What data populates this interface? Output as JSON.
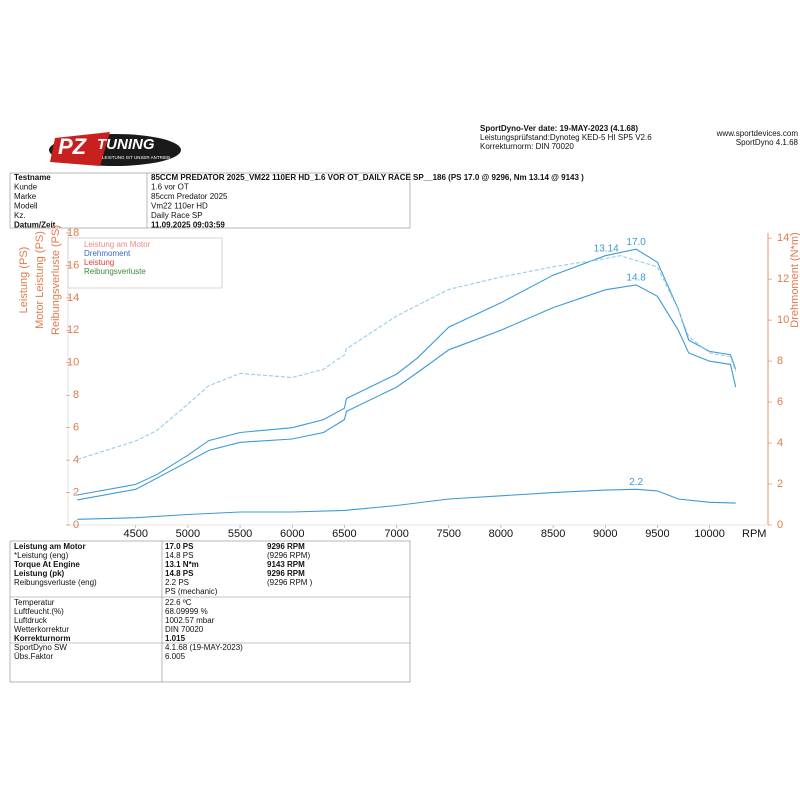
{
  "header": {
    "logo": {
      "brand": "PZ",
      "name": "TUNING",
      "tagline": "LEISTUNG IST UNSER ANTRIEB"
    },
    "version": "SportDyno-Ver date: 19-MAY-2023 (4.1.68)",
    "dyno": "Leistungsprüfstand:Dynoteg KED-5 HI SP5 V2.6",
    "norm": "Korrekturnorm: DIN 70020",
    "website": "www.sportdevices.com",
    "software": "SportDyno 4.1.68"
  },
  "info": [
    {
      "label": "Testname",
      "value": "85CCM PREDATOR 2025_VM22 110ER HD_1.6 VOR OT_DAILY RACE SP__186 (PS 17.0 @ 9296, Nm 13.14 @ 9143 )",
      "bold": true
    },
    {
      "label": "Kunde",
      "value": "1.6 vor OT",
      "bold": false
    },
    {
      "label": "Marke",
      "value": "85ccm Predator 2025",
      "bold": false
    },
    {
      "label": "Modell",
      "value": "Vm22 110er HD",
      "bold": false
    },
    {
      "label": "Kz.",
      "value": "Daily Race SP",
      "bold": false
    },
    {
      "label": "Datum/Zeit",
      "value": "11.09.2025 09:03:59",
      "bold": true
    }
  ],
  "chart_data": {
    "type": "line",
    "y_labels": [
      "Leistung (PS)",
      "Motor Leistung (PS)",
      "Reibungsverluste (PS)"
    ],
    "y2_label": "Drehmoment (N*m)",
    "x_label": "RPM",
    "xlim": [
      3870,
      10550
    ],
    "xticks": [
      4500,
      5000,
      5500,
      6000,
      6500,
      7000,
      7500,
      8000,
      8500,
      9000,
      9500,
      10000
    ],
    "ylim": [
      0,
      18
    ],
    "yticks": [
      0,
      2,
      4,
      6,
      8,
      10,
      12,
      14,
      16,
      18
    ],
    "y2lim": [
      0,
      14.25
    ],
    "y2ticks": [
      0,
      2,
      4,
      6,
      8,
      10,
      12,
      14
    ],
    "series": [
      {
        "name": "Leistung am Motor",
        "color": "#3c9ad6",
        "legend_color": "#f08a80",
        "dashed": false,
        "x": [
          3940,
          4500,
          4700,
          5000,
          5200,
          5500,
          6000,
          6300,
          6500,
          6520,
          7000,
          7200,
          7500,
          8000,
          8500,
          9000,
          9296,
          9500,
          9700,
          9800,
          10000,
          10200,
          10250
        ],
        "values": [
          1.85,
          2.5,
          3.1,
          4.3,
          5.2,
          5.7,
          6.0,
          6.5,
          7.2,
          7.8,
          9.3,
          10.3,
          12.2,
          13.7,
          15.4,
          16.6,
          17.0,
          16.2,
          13.3,
          11.4,
          10.7,
          10.5,
          9.6
        ]
      },
      {
        "name": "Drehmoment",
        "color": "#96cdeb",
        "legend_color": "#3a68c8",
        "dashed": true,
        "axis": "y2",
        "x": [
          3940,
          4500,
          4700,
          5000,
          5200,
          5500,
          6000,
          6300,
          6500,
          6520,
          7000,
          7500,
          8000,
          8500,
          9000,
          9143,
          9500,
          9700,
          9800,
          10000,
          10200,
          10250
        ],
        "values": [
          3.2,
          4.1,
          4.6,
          5.9,
          6.8,
          7.4,
          7.2,
          7.6,
          8.3,
          8.6,
          10.2,
          11.5,
          12.1,
          12.6,
          13.0,
          13.14,
          12.6,
          10.5,
          9.2,
          8.4,
          8.2,
          7.5
        ]
      },
      {
        "name": "Leistung",
        "color": "#3c9ad6",
        "legend_color": "#e03a3a",
        "dashed": false,
        "x": [
          3940,
          4500,
          5000,
          5200,
          5500,
          6000,
          6300,
          6500,
          6520,
          7000,
          7200,
          7500,
          8000,
          8500,
          9000,
          9296,
          9500,
          9700,
          9800,
          10000,
          10200,
          10250
        ],
        "values": [
          1.55,
          2.2,
          3.9,
          4.6,
          5.1,
          5.3,
          5.7,
          6.5,
          7.0,
          8.5,
          9.4,
          10.8,
          12.0,
          13.4,
          14.5,
          14.8,
          14.1,
          12.0,
          10.6,
          10.1,
          9.9,
          8.5
        ]
      },
      {
        "name": "Reibungsverluste",
        "color": "#3c9ad6",
        "legend_color": "#3a8a3a",
        "dashed": false,
        "x": [
          3940,
          4500,
          5000,
          5500,
          6000,
          6500,
          7000,
          7500,
          8000,
          8500,
          9000,
          9296,
          9500,
          9700,
          10000,
          10250
        ],
        "values": [
          0.35,
          0.45,
          0.65,
          0.8,
          0.8,
          0.9,
          1.2,
          1.6,
          1.8,
          2.0,
          2.15,
          2.2,
          2.1,
          1.6,
          1.4,
          1.35
        ]
      }
    ],
    "annotations": [
      {
        "label": "17.0",
        "x": 9296,
        "y": 17.0
      },
      {
        "label": "13.14",
        "x": 9143,
        "y": 13.14,
        "axis": "y2"
      },
      {
        "label": "14.8",
        "x": 9296,
        "y": 14.8
      },
      {
        "label": "2.2",
        "x": 9296,
        "y": 2.2
      }
    ]
  },
  "results": [
    [
      {
        "label": "Leistung am Motor",
        "value": "17.0 PS",
        "rpm": "9296 RPM",
        "bold": true
      },
      {
        "label": "*Leistung (eng)",
        "value": "14.8 PS",
        "rpm": "(9296 RPM)",
        "bold": false
      },
      {
        "label": "Torque At Engine",
        "value": "13.1 N*m",
        "rpm": "9143 RPM",
        "bold": true
      },
      {
        "label": "Leistung (pk)",
        "value": "14.8 PS",
        "rpm": "9296 RPM",
        "bold": true
      },
      {
        "label": "Reibungsverluste (eng)",
        "value": "2.2 PS",
        "rpm": "(9296 RPM )",
        "bold": false
      },
      {
        "value": "PS (mechanic)",
        "bold": false
      }
    ],
    [
      {
        "label": "Temperatur",
        "value": "22.6 ºC",
        "bold": false
      },
      {
        "label": "Luftfeucht.(%)",
        "value": "68.09999 %",
        "bold": false
      },
      {
        "label": "Luftdruck",
        "value": "1002.57 mbar",
        "bold": false
      },
      {
        "label": "Wetterkorrektur",
        "value": "DIN 70020",
        "bold": false
      },
      {
        "label": "Korrekturnorm",
        "value": "1.015",
        "bold": true
      }
    ],
    [
      {
        "label": "SportDyno SW",
        "value": "4.1.68 (19-MAY-2023)",
        "bold": false
      },
      {
        "label": "Übs.Faktor",
        "value": "6.005",
        "bold": false
      }
    ]
  ]
}
